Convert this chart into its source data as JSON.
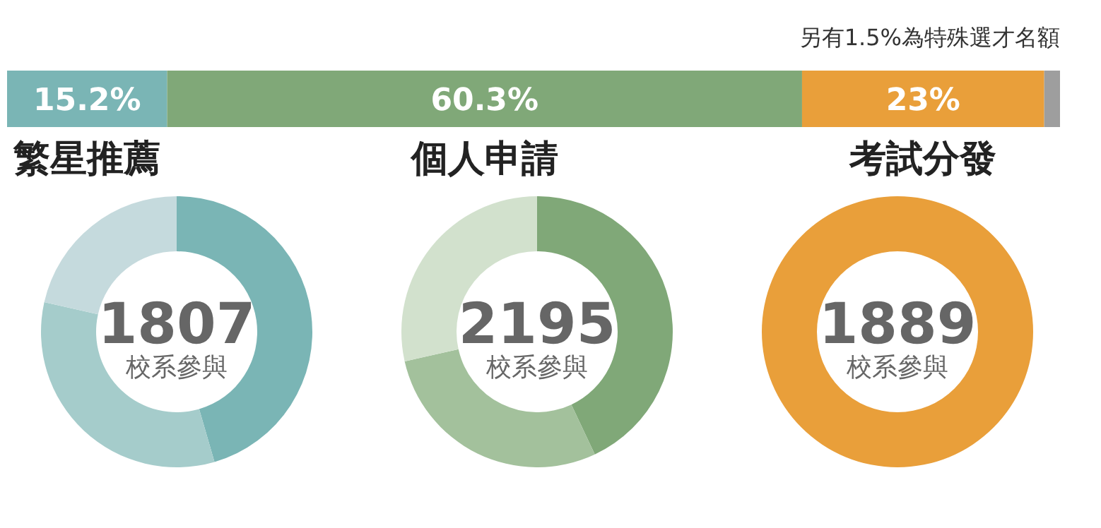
{
  "chart_data": [
    {
      "type": "bar",
      "orientation": "horizontal",
      "stacked": true,
      "categories": [
        null
      ],
      "tick_labels": false,
      "annotations": [
        "另有1.5%為特殊選才名額"
      ],
      "series": [
        {
          "name": "繁星推薦",
          "color": "#7ab5b5",
          "values": [
            15.2
          ],
          "value_labels": [
            "15.2%"
          ]
        },
        {
          "name": "個人申請",
          "color": "#80a878",
          "values": [
            60.3
          ],
          "value_labels": [
            "60.3%"
          ]
        },
        {
          "name": "考試分發",
          "color": "#e99f3a",
          "values": [
            23
          ],
          "value_labels": [
            "23%"
          ]
        },
        {
          "color": "#9e9e9e",
          "values": [
            1.5
          ],
          "value_labels": [
            null
          ]
        }
      ]
    },
    {
      "type": "donut",
      "categories": [
        null,
        null,
        null
      ],
      "values": [
        45.5,
        33,
        21.5
      ],
      "colors": [
        "#7ab5b5",
        "#a5cccb",
        "#c5dadd"
      ],
      "annotations": [
        "1807",
        "校系參與"
      ]
    },
    {
      "type": "donut",
      "categories": [
        null,
        null,
        null
      ],
      "values": [
        43,
        28.5,
        28.5
      ],
      "colors": [
        "#80a878",
        "#a3c19c",
        "#d2e1cd"
      ],
      "annotations": [
        "2195",
        "校系參與"
      ]
    },
    {
      "type": "donut",
      "categories": [
        null
      ],
      "values": [
        100
      ],
      "colors": [
        "#e99f3a"
      ],
      "annotations": [
        "1889",
        "校系參與"
      ]
    }
  ]
}
